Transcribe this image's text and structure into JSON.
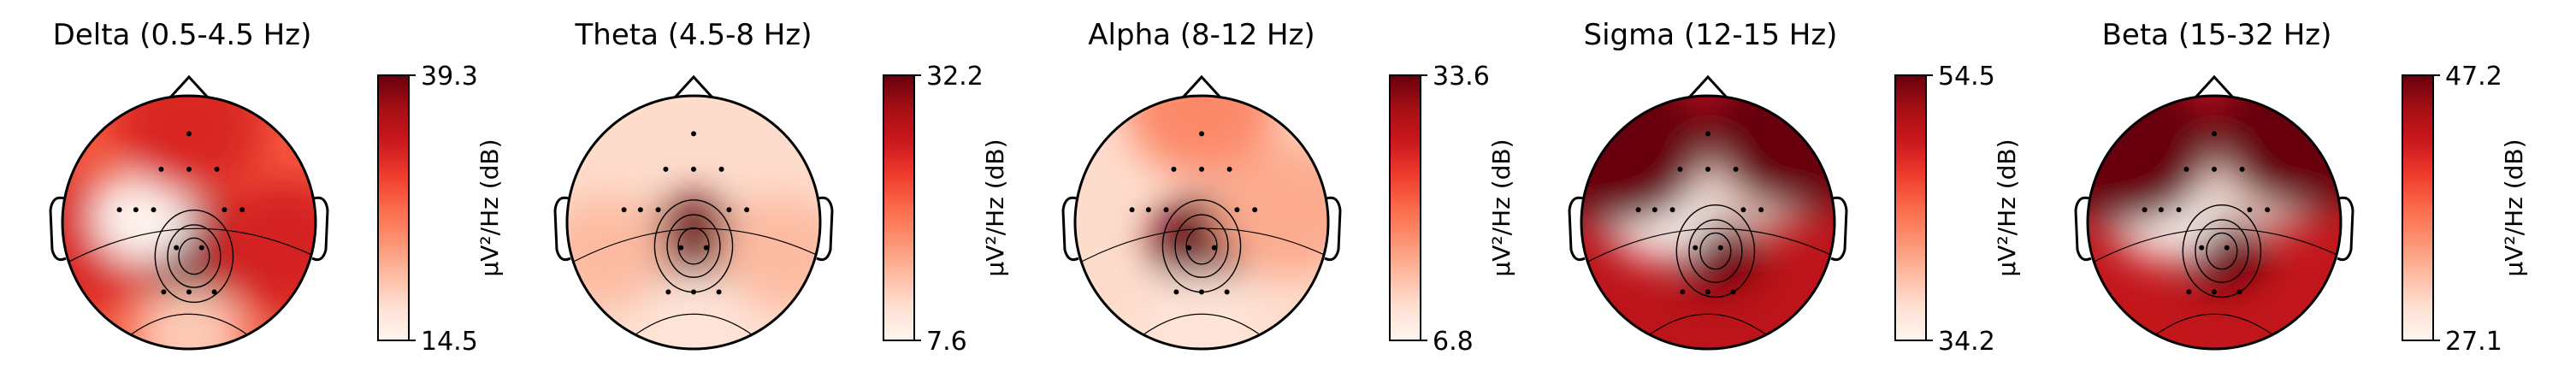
{
  "chart_data": {
    "type": "heatmap",
    "colormap": "Reds",
    "colorbar_label": "µV²/Hz (dB)",
    "panels": [
      {
        "title": "Delta (0.5-4.5 Hz)",
        "vmin": 14.5,
        "vmax": 39.3,
        "background": 0.55,
        "spots": [
          {
            "x": 0.52,
            "y": 0.62,
            "v": 1.0,
            "r": 0.22
          },
          {
            "x": 0.1,
            "y": 0.58,
            "v": 0.7,
            "r": 0.3
          },
          {
            "x": 0.88,
            "y": 0.6,
            "v": 0.72,
            "r": 0.3
          },
          {
            "x": 0.32,
            "y": 0.48,
            "v": 0.0,
            "r": 0.2
          },
          {
            "x": 0.5,
            "y": 0.12,
            "v": 0.7,
            "r": 0.3
          },
          {
            "x": 0.5,
            "y": 0.95,
            "v": 0.2,
            "r": 0.22
          }
        ]
      },
      {
        "title": "Theta (4.5-8 Hz)",
        "vmin": 7.6,
        "vmax": 32.2,
        "background": 0.14,
        "spots": [
          {
            "x": 0.5,
            "y": 0.58,
            "v": 1.0,
            "r": 0.2
          },
          {
            "x": 0.5,
            "y": 0.92,
            "v": 0.1,
            "r": 0.25
          },
          {
            "x": 0.15,
            "y": 0.62,
            "v": 0.25,
            "r": 0.25
          },
          {
            "x": 0.85,
            "y": 0.62,
            "v": 0.25,
            "r": 0.25
          }
        ]
      },
      {
        "title": "Alpha (8-12 Hz)",
        "vmin": 6.8,
        "vmax": 33.6,
        "background": 0.14,
        "spots": [
          {
            "x": 0.5,
            "y": 0.58,
            "v": 1.0,
            "r": 0.2
          },
          {
            "x": 0.5,
            "y": 0.05,
            "v": 0.4,
            "r": 0.3
          },
          {
            "x": 0.85,
            "y": 0.45,
            "v": 0.3,
            "r": 0.3
          },
          {
            "x": 0.5,
            "y": 0.92,
            "v": 0.1,
            "r": 0.25
          }
        ]
      },
      {
        "title": "Sigma (12-15 Hz)",
        "vmin": 34.2,
        "vmax": 54.5,
        "background": 0.8,
        "spots": [
          {
            "x": 0.53,
            "y": 0.6,
            "v": 1.0,
            "r": 0.18
          },
          {
            "x": 0.3,
            "y": 0.45,
            "v": 0.0,
            "r": 0.22
          },
          {
            "x": 0.72,
            "y": 0.3,
            "v": 0.1,
            "r": 0.25
          },
          {
            "x": 0.15,
            "y": 0.2,
            "v": 1.0,
            "r": 0.35
          },
          {
            "x": 0.85,
            "y": 0.15,
            "v": 1.0,
            "r": 0.35
          }
        ]
      },
      {
        "title": "Beta (15-32 Hz)",
        "vmin": 27.1,
        "vmax": 47.2,
        "background": 0.78,
        "spots": [
          {
            "x": 0.53,
            "y": 0.6,
            "v": 1.0,
            "r": 0.18
          },
          {
            "x": 0.3,
            "y": 0.45,
            "v": 0.0,
            "r": 0.22
          },
          {
            "x": 0.72,
            "y": 0.3,
            "v": 0.1,
            "r": 0.25
          },
          {
            "x": 0.15,
            "y": 0.2,
            "v": 1.0,
            "r": 0.35
          },
          {
            "x": 0.85,
            "y": 0.15,
            "v": 1.0,
            "r": 0.35
          }
        ]
      }
    ]
  }
}
